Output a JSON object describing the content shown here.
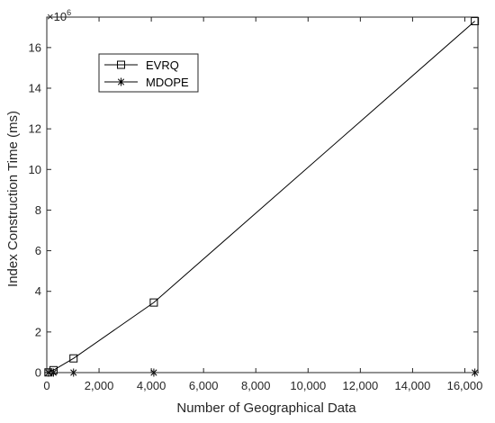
{
  "chart_data": {
    "type": "line",
    "xlabel": "Number of Geographical Data",
    "ylabel": "Index Construction Time (ms)",
    "y_multiplier": {
      "base": "×10",
      "exponent": "6"
    },
    "xlim": [
      0,
      16500
    ],
    "ylim": [
      0,
      17500000
    ],
    "xticks": [
      0,
      2000,
      4000,
      6000,
      8000,
      10000,
      12000,
      14000,
      16000
    ],
    "xtick_labels": [
      "0",
      "2,000",
      "4,000",
      "6,000",
      "8,000",
      "10,000",
      "12,000",
      "14,000",
      "16,000"
    ],
    "yticks": [
      0,
      2000000,
      4000000,
      6000000,
      8000000,
      10000000,
      12000000,
      14000000,
      16000000
    ],
    "ytick_labels": [
      "0",
      "2",
      "4",
      "6",
      "8",
      "10",
      "12",
      "14",
      "16"
    ],
    "grid": false,
    "legend_position": "top-left",
    "series": [
      {
        "name": "EVRQ",
        "marker": "square",
        "color": "#000000",
        "x": [
          64,
          256,
          1024,
          4096,
          16384
        ],
        "y": [
          10000,
          120000,
          700000,
          3450000,
          17300000
        ]
      },
      {
        "name": "MDOPE",
        "marker": "asterisk",
        "color": "#000000",
        "x": [
          64,
          256,
          1024,
          4096,
          16384
        ],
        "y": [
          0,
          0,
          0,
          0,
          0
        ]
      }
    ]
  }
}
